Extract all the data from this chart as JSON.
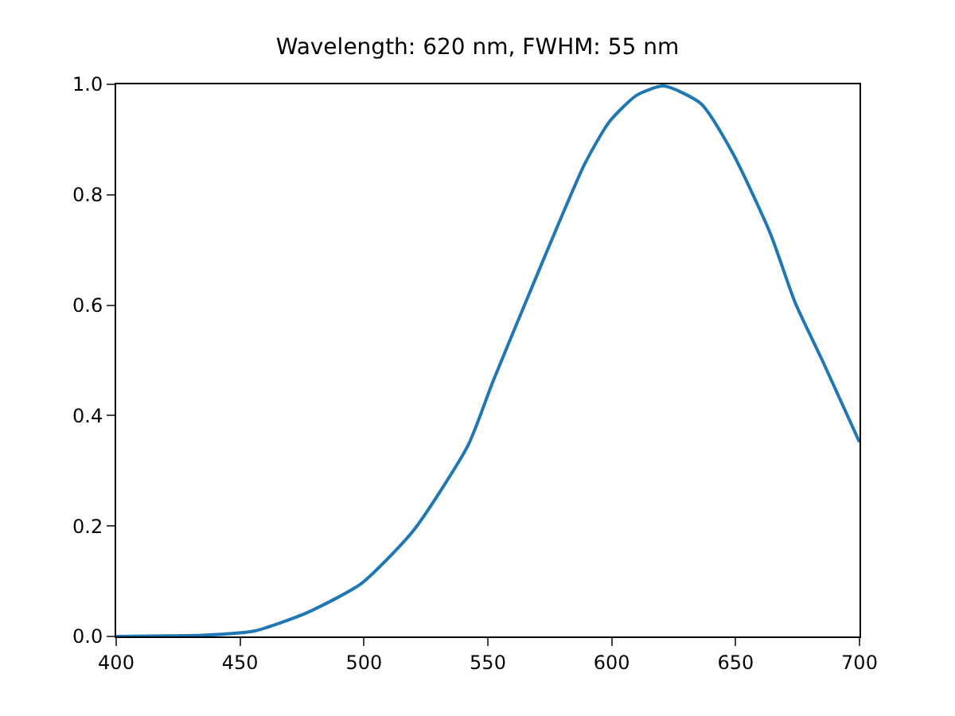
{
  "chart_data": {
    "type": "line",
    "title": "Wavelength: 620 nm, FWHM: 55 nm",
    "x": [
      400,
      420,
      435,
      456,
      477,
      499,
      520,
      542,
      552,
      567,
      589,
      599,
      610,
      621,
      636,
      649,
      664,
      674,
      685,
      700
    ],
    "series": [
      {
        "color": "#1f77b4",
        "values": [
          0.0,
          0.001,
          0.002,
          0.01,
          0.043,
          0.096,
          0.192,
          0.346,
          0.461,
          0.624,
          0.855,
          0.932,
          0.98,
          0.997,
          0.965,
          0.874,
          0.73,
          0.605,
          0.5,
          0.352
        ]
      }
    ],
    "xlim": [
      400,
      700
    ],
    "xticks": [
      400,
      450,
      500,
      550,
      600,
      650,
      700
    ],
    "ylim": [
      0,
      1
    ],
    "yticks": [
      {
        "value": 0,
        "label": "0.0"
      },
      {
        "value": 0.2,
        "label": "0.2"
      },
      {
        "value": 0.4,
        "label": "0.4"
      },
      {
        "value": 0.6,
        "label": "0.6"
      },
      {
        "value": 0.8,
        "label": "0.8"
      },
      {
        "value": 1,
        "label": "1.0"
      }
    ],
    "legend": false
  }
}
